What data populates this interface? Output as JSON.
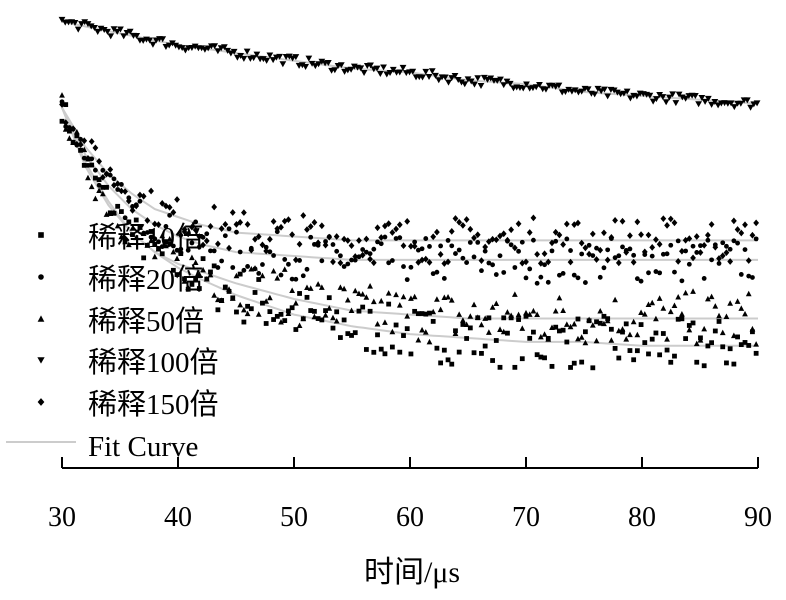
{
  "chart_data": {
    "type": "scatter",
    "title": "",
    "xlabel": "时间/μs",
    "ylabel": "",
    "xlim": [
      30,
      90
    ],
    "xticks": [
      30,
      40,
      50,
      60,
      70,
      80,
      90
    ],
    "x_tick_labels": [
      "30",
      "40",
      "50",
      "60",
      "70",
      "80",
      "90"
    ],
    "y_axis_visible": false,
    "grid": false,
    "legend_position": "left",
    "legend": [
      "稀释10倍",
      "稀释20倍",
      "稀释50倍",
      "稀释100倍",
      "稀释150倍",
      "Fit Curve"
    ],
    "series": [
      {
        "name": "稀释10倍",
        "marker": "square",
        "color": "#000000",
        "x": [
          30,
          32,
          34,
          36,
          38,
          40,
          42,
          45,
          50,
          55,
          60,
          65,
          70,
          75,
          80,
          85,
          90
        ],
        "y": [
          0.8,
          0.66,
          0.56,
          0.48,
          0.43,
          0.39,
          0.36,
          0.32,
          0.27,
          0.24,
          0.22,
          0.21,
          0.2,
          0.2,
          0.19,
          0.19,
          0.19
        ]
      },
      {
        "name": "稀释20倍",
        "marker": "circle",
        "color": "#000000",
        "x": [
          30,
          32,
          34,
          36,
          38,
          40,
          42,
          45,
          50,
          55,
          60,
          65,
          70,
          75,
          80,
          85,
          90
        ],
        "y": [
          0.8,
          0.68,
          0.6,
          0.54,
          0.5,
          0.47,
          0.45,
          0.43,
          0.42,
          0.41,
          0.41,
          0.41,
          0.41,
          0.41,
          0.41,
          0.41,
          0.41
        ]
      },
      {
        "name": "稀释50倍",
        "marker": "triangle-up",
        "color": "#000000",
        "x": [
          30,
          32,
          34,
          36,
          38,
          40,
          42,
          45,
          50,
          55,
          60,
          65,
          70,
          75,
          80,
          85,
          90
        ],
        "y": [
          0.8,
          0.65,
          0.55,
          0.48,
          0.43,
          0.4,
          0.38,
          0.35,
          0.31,
          0.28,
          0.27,
          0.26,
          0.26,
          0.26,
          0.26,
          0.26,
          0.26
        ]
      },
      {
        "name": "稀释100倍",
        "marker": "triangle-down",
        "color": "#000000",
        "x": [
          30,
          35,
          40,
          45,
          50,
          55,
          60,
          65,
          70,
          75,
          80,
          85,
          90
        ],
        "y": [
          1.02,
          0.99,
          0.96,
          0.94,
          0.92,
          0.9,
          0.89,
          0.87,
          0.86,
          0.84,
          0.83,
          0.82,
          0.81
        ]
      },
      {
        "name": "稀释150倍",
        "marker": "diamond",
        "color": "#000000",
        "x": [
          30,
          32,
          34,
          36,
          38,
          40,
          42,
          45,
          50,
          55,
          60,
          65,
          70,
          75,
          80,
          85,
          90
        ],
        "y": [
          0.8,
          0.7,
          0.63,
          0.58,
          0.54,
          0.52,
          0.5,
          0.48,
          0.47,
          0.46,
          0.46,
          0.46,
          0.46,
          0.46,
          0.46,
          0.46,
          0.46
        ]
      }
    ],
    "fit_curve": {
      "name": "Fit Curve",
      "color": "#cccccc"
    }
  }
}
